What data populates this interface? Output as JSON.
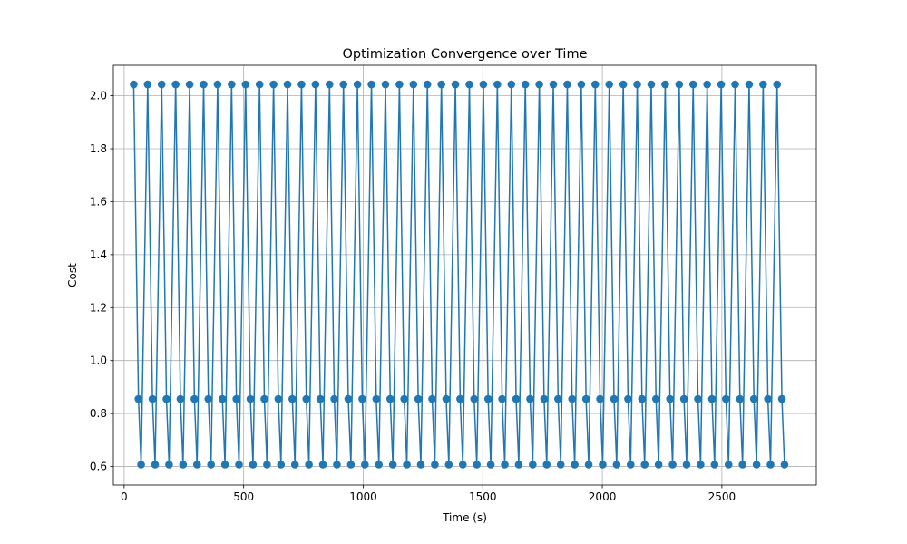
{
  "chart_data": {
    "type": "line",
    "title": "Optimization Convergence over Time",
    "xlabel": "Time (s)",
    "ylabel": "Cost",
    "xlim": [
      -45,
      2895
    ],
    "ylim": [
      0.53,
      2.115
    ],
    "xticks": [
      0,
      500,
      1000,
      1500,
      2000,
      2500
    ],
    "xtick_labels": [
      "0",
      "500",
      "1000",
      "1500",
      "2000",
      "2500"
    ],
    "yticks": [
      0.6,
      0.8,
      1.0,
      1.2,
      1.4,
      1.6,
      1.8,
      2.0
    ],
    "ytick_labels": [
      "0.6",
      "0.8",
      "1.0",
      "1.2",
      "1.4",
      "1.6",
      "1.8",
      "2.0"
    ],
    "grid": true,
    "legend": false,
    "cycle_count": 47,
    "cycle_x_start": 40,
    "cycle_period": 58.5,
    "cycle_offsets": [
      0,
      20,
      31
    ],
    "cycle_values": [
      2.043,
      0.855,
      0.607
    ],
    "series_color": "#1f77b4"
  }
}
